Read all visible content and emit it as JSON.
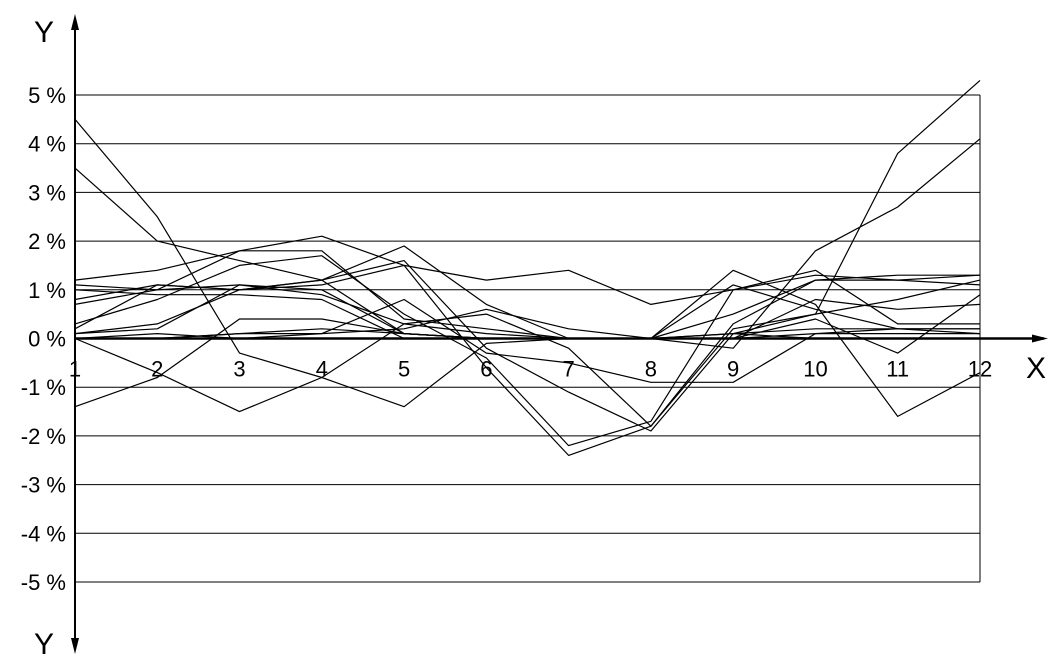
{
  "chart_data": {
    "type": "line",
    "title": "",
    "xlabel": "X",
    "ylabel_top": "Y",
    "ylabel_bottom": "Y",
    "x": [
      1,
      2,
      3,
      4,
      5,
      6,
      7,
      8,
      9,
      10,
      11,
      12
    ],
    "x_tick_labels": [
      "1",
      "2",
      "3",
      "4",
      "5",
      "6",
      "7",
      "8",
      "9",
      "10",
      "11",
      "12"
    ],
    "y_tick_labels": [
      "5 %",
      "4 %",
      "3 %",
      "2 %",
      "1 %",
      "0 %",
      "-1 %",
      "-2 %",
      "-3 %",
      "-4 %",
      "-5 %"
    ],
    "y_unit": "%",
    "ylim": [
      -5,
      5
    ],
    "xlim": [
      1,
      12
    ],
    "grid": "horizontal",
    "legend": "none",
    "line_color": "#000000",
    "series": [
      {
        "values": [
          4.5,
          2.5,
          -0.3,
          -0.8,
          0.3,
          0.5,
          -0.2,
          -1.8,
          0.2,
          0.5,
          3.8,
          5.3
        ]
      },
      {
        "values": [
          3.5,
          2.0,
          1.6,
          1.2,
          0.1,
          0.0,
          0.0,
          0.0,
          -0.2,
          1.8,
          2.7,
          4.1
        ]
      },
      {
        "values": [
          -1.4,
          -0.8,
          0.4,
          0.4,
          0.1,
          0.0,
          0.0,
          0.0,
          0.0,
          0.4,
          -0.3,
          0.9
        ]
      },
      {
        "values": [
          0.0,
          -0.7,
          -1.5,
          -0.8,
          -1.4,
          -0.1,
          0.0,
          0.0,
          1.4,
          0.7,
          -1.6,
          -0.7
        ]
      },
      {
        "values": [
          1.2,
          1.4,
          1.8,
          1.8,
          0.4,
          0.2,
          0.0,
          0.0,
          0.0,
          0.1,
          0.2,
          0.2
        ]
      },
      {
        "values": [
          0.7,
          1.0,
          1.8,
          2.1,
          1.5,
          -0.6,
          -2.4,
          -1.8,
          0.3,
          1.2,
          1.3,
          1.3
        ]
      },
      {
        "values": [
          0.3,
          0.8,
          1.5,
          1.7,
          0.5,
          -0.4,
          -2.2,
          -1.7,
          1.0,
          1.4,
          0.3,
          0.3
        ]
      },
      {
        "values": [
          0.2,
          1.1,
          1.0,
          1.2,
          1.9,
          0.7,
          0.0,
          0.0,
          0.1,
          0.5,
          0.8,
          1.2
        ]
      },
      {
        "values": [
          1.1,
          1.0,
          1.1,
          1.0,
          0.1,
          0.0,
          0.0,
          0.0,
          1.1,
          0.6,
          0.2,
          0.2
        ]
      },
      {
        "values": [
          1.0,
          0.9,
          0.9,
          0.8,
          0.0,
          0.0,
          0.0,
          0.0,
          0.5,
          1.2,
          1.2,
          1.3
        ]
      },
      {
        "values": [
          0.1,
          0.3,
          1.0,
          1.2,
          1.6,
          -0.2,
          -1.1,
          -1.9,
          0.1,
          0.2,
          0.2,
          0.1
        ]
      },
      {
        "values": [
          0.0,
          0.1,
          0.0,
          0.1,
          0.8,
          -0.3,
          -0.5,
          -0.9,
          -0.9,
          0.1,
          0.1,
          0.1
        ]
      },
      {
        "values": [
          0.1,
          0.2,
          1.1,
          0.9,
          0.3,
          0.1,
          0.0,
          0.0,
          0.0,
          0.8,
          0.6,
          0.7
        ]
      },
      {
        "values": [
          0.8,
          1.1,
          1.0,
          1.1,
          1.5,
          1.2,
          1.4,
          0.7,
          1.0,
          1.3,
          1.2,
          1.1
        ]
      },
      {
        "values": [
          0.0,
          0.0,
          0.1,
          0.1,
          0.2,
          0.6,
          0.2,
          0.0,
          0.1,
          0.0,
          0.0,
          0.0
        ]
      },
      {
        "values": [
          0.0,
          0.0,
          0.1,
          0.2,
          0.1,
          0.0,
          0.0,
          0.0,
          0.0,
          0.0,
          0.0,
          0.0
        ]
      }
    ]
  }
}
